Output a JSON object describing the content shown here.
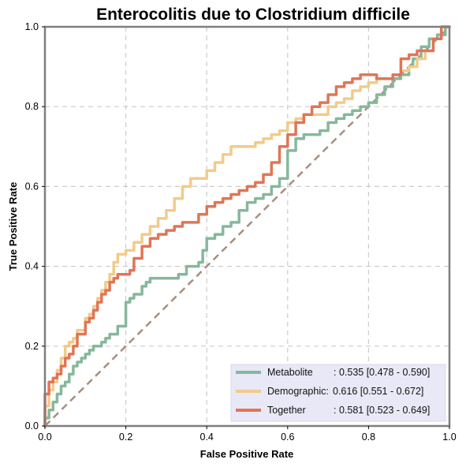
{
  "chart_data": {
    "type": "line",
    "title": "Enterocolitis due to Clostridium difficile",
    "xlabel": "False Positive Rate",
    "ylabel": "True Positive Rate",
    "xlim": [
      0,
      1
    ],
    "ylim": [
      0,
      1
    ],
    "xticks": [
      "0.0",
      "0.2",
      "0.4",
      "0.6",
      "0.8",
      "1.0"
    ],
    "yticks": [
      "0.0",
      "0.2",
      "0.4",
      "0.6",
      "0.8",
      "1.0"
    ],
    "grid": true,
    "legend_position": "bottom-right",
    "diagonal": {
      "x": [
        0,
        1
      ],
      "y": [
        0,
        1
      ],
      "color": "#a88e80",
      "style": "dashed"
    },
    "series": [
      {
        "name": "Metabolite",
        "legend_name": "Metabolite",
        "auc_text": ": 0.535 [0.478 - 0.590]",
        "color": "#86b89c",
        "x": [
          0,
          0.01,
          0.02,
          0.03,
          0.04,
          0.05,
          0.06,
          0.07,
          0.08,
          0.09,
          0.1,
          0.11,
          0.12,
          0.13,
          0.14,
          0.15,
          0.16,
          0.18,
          0.2,
          0.2,
          0.21,
          0.22,
          0.24,
          0.25,
          0.26,
          0.28,
          0.3,
          0.33,
          0.35,
          0.36,
          0.38,
          0.39,
          0.4,
          0.4,
          0.42,
          0.44,
          0.46,
          0.48,
          0.5,
          0.52,
          0.54,
          0.56,
          0.58,
          0.6,
          0.6,
          0.62,
          0.64,
          0.66,
          0.68,
          0.7,
          0.72,
          0.74,
          0.76,
          0.78,
          0.8,
          0.82,
          0.84,
          0.86,
          0.88,
          0.9,
          0.91,
          0.93,
          0.95,
          0.97,
          0.99,
          1.0
        ],
        "y": [
          0,
          0.02,
          0.04,
          0.06,
          0.08,
          0.1,
          0.11,
          0.13,
          0.15,
          0.16,
          0.17,
          0.18,
          0.19,
          0.2,
          0.2,
          0.21,
          0.22,
          0.23,
          0.25,
          0.28,
          0.31,
          0.32,
          0.33,
          0.35,
          0.36,
          0.37,
          0.37,
          0.37,
          0.38,
          0.4,
          0.4,
          0.41,
          0.44,
          0.46,
          0.47,
          0.48,
          0.5,
          0.51,
          0.54,
          0.56,
          0.57,
          0.58,
          0.6,
          0.62,
          0.66,
          0.69,
          0.72,
          0.73,
          0.73,
          0.74,
          0.76,
          0.77,
          0.78,
          0.79,
          0.8,
          0.81,
          0.83,
          0.85,
          0.87,
          0.88,
          0.9,
          0.92,
          0.95,
          0.97,
          0.98,
          1.0
        ]
      },
      {
        "name": "Demographic",
        "legend_name": "Demographic:",
        "auc_text": " 0.616 [0.551 - 0.672]",
        "color": "#f2cb8a",
        "x": [
          0,
          0.01,
          0.02,
          0.03,
          0.04,
          0.05,
          0.06,
          0.07,
          0.08,
          0.1,
          0.11,
          0.12,
          0.13,
          0.14,
          0.15,
          0.16,
          0.17,
          0.18,
          0.19,
          0.2,
          0.21,
          0.22,
          0.24,
          0.26,
          0.28,
          0.3,
          0.32,
          0.34,
          0.36,
          0.38,
          0.4,
          0.42,
          0.44,
          0.46,
          0.48,
          0.5,
          0.52,
          0.54,
          0.56,
          0.58,
          0.6,
          0.62,
          0.64,
          0.66,
          0.68,
          0.7,
          0.72,
          0.74,
          0.76,
          0.78,
          0.8,
          0.82,
          0.84,
          0.86,
          0.88,
          0.9,
          0.92,
          0.94,
          0.96,
          0.98,
          1.0
        ],
        "y": [
          0,
          0.05,
          0.09,
          0.11,
          0.14,
          0.17,
          0.2,
          0.21,
          0.22,
          0.24,
          0.27,
          0.28,
          0.3,
          0.32,
          0.34,
          0.36,
          0.38,
          0.41,
          0.43,
          0.43,
          0.44,
          0.44,
          0.46,
          0.48,
          0.5,
          0.52,
          0.54,
          0.57,
          0.6,
          0.62,
          0.62,
          0.64,
          0.66,
          0.68,
          0.7,
          0.7,
          0.7,
          0.71,
          0.72,
          0.73,
          0.74,
          0.76,
          0.77,
          0.78,
          0.78,
          0.78,
          0.8,
          0.81,
          0.82,
          0.84,
          0.85,
          0.86,
          0.87,
          0.87,
          0.88,
          0.89,
          0.9,
          0.92,
          0.94,
          0.97,
          1.0
        ]
      },
      {
        "name": "Together",
        "legend_name": "Together",
        "auc_text": ": 0.581 [0.523 - 0.649]",
        "color": "#e17556",
        "x": [
          0,
          0.01,
          0.02,
          0.03,
          0.04,
          0.05,
          0.06,
          0.07,
          0.08,
          0.1,
          0.11,
          0.12,
          0.13,
          0.14,
          0.15,
          0.16,
          0.17,
          0.18,
          0.19,
          0.2,
          0.21,
          0.22,
          0.24,
          0.26,
          0.28,
          0.3,
          0.32,
          0.34,
          0.36,
          0.38,
          0.4,
          0.42,
          0.44,
          0.46,
          0.48,
          0.5,
          0.52,
          0.54,
          0.56,
          0.58,
          0.6,
          0.62,
          0.64,
          0.66,
          0.68,
          0.7,
          0.72,
          0.74,
          0.76,
          0.78,
          0.8,
          0.82,
          0.84,
          0.86,
          0.88,
          0.9,
          0.92,
          0.94,
          0.96,
          0.98,
          1.0
        ],
        "y": [
          0,
          0.08,
          0.11,
          0.12,
          0.13,
          0.15,
          0.17,
          0.18,
          0.2,
          0.23,
          0.26,
          0.27,
          0.29,
          0.31,
          0.33,
          0.34,
          0.36,
          0.37,
          0.38,
          0.38,
          0.38,
          0.39,
          0.42,
          0.45,
          0.47,
          0.48,
          0.49,
          0.5,
          0.51,
          0.51,
          0.53,
          0.55,
          0.56,
          0.57,
          0.58,
          0.59,
          0.6,
          0.61,
          0.63,
          0.66,
          0.7,
          0.73,
          0.76,
          0.78,
          0.8,
          0.81,
          0.83,
          0.85,
          0.86,
          0.87,
          0.88,
          0.88,
          0.87,
          0.87,
          0.88,
          0.92,
          0.93,
          0.94,
          0.94,
          0.97,
          1.0
        ]
      }
    ]
  }
}
